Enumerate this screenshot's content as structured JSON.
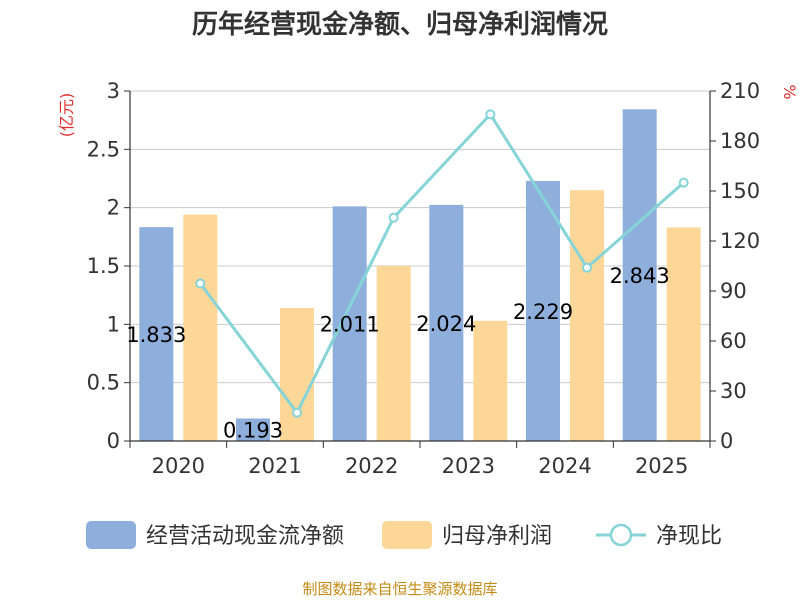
{
  "chart_data": {
    "type": "bar",
    "title": "历年经营现金净额、归母净利润情况",
    "categories": [
      "2020",
      "2021",
      "2022",
      "2023",
      "2024",
      "2025"
    ],
    "series": [
      {
        "name": "经营活动现金流净额",
        "kind": "bar",
        "axis": "left",
        "color": "#8eaedc",
        "values": [
          1.833,
          0.193,
          2.011,
          2.024,
          2.229,
          2.843
        ],
        "labels": [
          "1.833",
          "0.193",
          "2.011",
          "2.024",
          "2.229",
          "2.843"
        ]
      },
      {
        "name": "归母净利润",
        "kind": "bar",
        "axis": "left",
        "color": "#fdd798",
        "values": [
          1.94,
          1.14,
          1.5,
          1.03,
          2.15,
          1.83
        ]
      },
      {
        "name": "净现比",
        "kind": "line",
        "axis": "right",
        "color": "#86d4d8",
        "values": [
          94.5,
          17,
          134,
          196,
          104,
          155
        ]
      }
    ],
    "y_left": {
      "label": "(亿元)",
      "min": 0,
      "max": 3,
      "ticks": [
        "0",
        "0.5",
        "1",
        "1.5",
        "2",
        "2.5",
        "3"
      ]
    },
    "y_right": {
      "label": "%",
      "min": 0,
      "max": 210,
      "ticks": [
        "0",
        "30",
        "60",
        "90",
        "120",
        "150",
        "180",
        "210"
      ]
    },
    "grid": true,
    "legend_position": "bottom",
    "source": "制图数据来自恒生聚源数据库"
  }
}
